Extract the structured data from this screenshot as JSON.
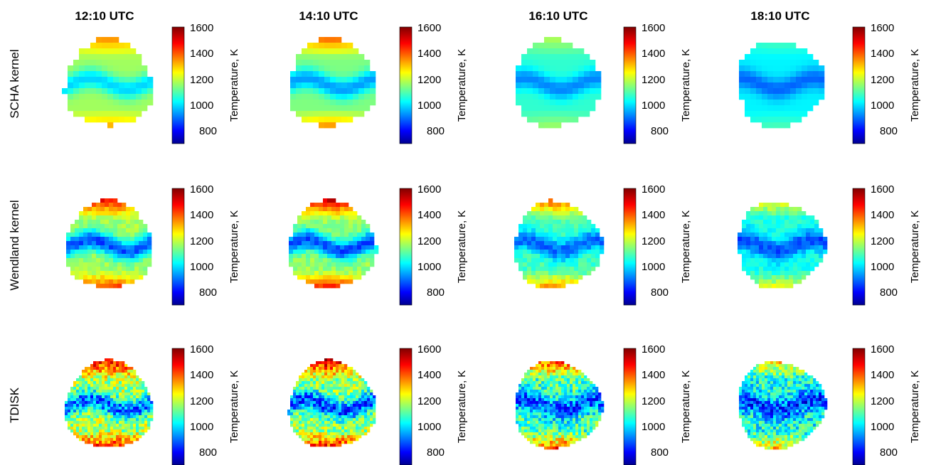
{
  "figure": {
    "columns": [
      "12:10 UTC",
      "14:10 UTC",
      "16:10 UTC",
      "18:10 UTC"
    ],
    "rows": [
      "SCHA kernel",
      "Wendland kernel",
      "TDISK"
    ],
    "colorbar": {
      "label": "Temperature, K",
      "ticks": [
        800,
        1000,
        1200,
        1400,
        1600
      ],
      "range": [
        700,
        1600
      ],
      "colormap": "jet"
    }
  },
  "chart_data": {
    "type": "heatmap",
    "layout": "3 rows x 4 columns of disk maps",
    "columns": [
      "12:10 UTC",
      "14:10 UTC",
      "16:10 UTC",
      "18:10 UTC"
    ],
    "rows": [
      "SCHA kernel",
      "Wendland kernel",
      "TDISK"
    ],
    "zlabel": "Temperature, K",
    "zlim": [
      700,
      1600
    ],
    "colorbar_ticks": [
      800,
      1000,
      1200,
      1400,
      1600
    ],
    "colormap": "jet",
    "approx_mean_temperature": {
      "SCHA kernel": [
        1180,
        1150,
        1080,
        1030
      ],
      "Wendland kernel": [
        1180,
        1170,
        1100,
        1060
      ],
      "TDISK": [
        1190,
        1170,
        1100,
        1060
      ]
    },
    "approx_band_minimum": {
      "SCHA kernel": [
        1000,
        950,
        930,
        900
      ],
      "Wendland kernel": [
        880,
        880,
        900,
        880
      ],
      "TDISK": [
        900,
        880,
        880,
        860
      ]
    },
    "approx_rim_maximum": {
      "SCHA kernel": [
        1380,
        1420,
        1200,
        1120
      ],
      "Wendland kernel": [
        1520,
        1560,
        1450,
        1300
      ],
      "TDISK": [
        1550,
        1580,
        1500,
        1350
      ]
    }
  }
}
